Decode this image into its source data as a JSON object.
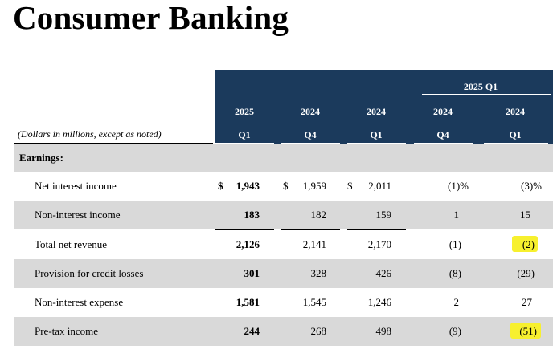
{
  "page": {
    "title": "Consumer Banking"
  },
  "table": {
    "note": "(Dollars in millions, except as noted)",
    "group_header": "2025 Q1",
    "columns": [
      {
        "year": "2025",
        "quarter": "Q1"
      },
      {
        "year": "2024",
        "quarter": "Q4"
      },
      {
        "year": "2024",
        "quarter": "Q1"
      },
      {
        "year": "2024",
        "quarter": "Q4"
      },
      {
        "year": "2024",
        "quarter": "Q1"
      }
    ],
    "section_label": "Earnings:",
    "rows": [
      {
        "label": "Net interest income",
        "c1": "1,943",
        "c2": "1,959",
        "c3": "2,011",
        "c4": "(1)%",
        "c5": "(3)%",
        "dollar_sign": "$"
      },
      {
        "label": "Non-interest income",
        "c1": "183",
        "c2": "182",
        "c3": "159",
        "c4": "1",
        "c5": "15"
      },
      {
        "label": "Total net revenue",
        "c1": "2,126",
        "c2": "2,141",
        "c3": "2,170",
        "c4": "(1)",
        "c5": "(2)"
      },
      {
        "label": "Provision for credit losses",
        "c1": "301",
        "c2": "328",
        "c3": "426",
        "c4": "(8)",
        "c5": "(29)"
      },
      {
        "label": "Non-interest expense",
        "c1": "1,581",
        "c2": "1,545",
        "c3": "1,246",
        "c4": "2",
        "c5": "27"
      },
      {
        "label": "Pre-tax income",
        "c1": "244",
        "c2": "268",
        "c3": "498",
        "c4": "(9)",
        "c5": "(51)"
      }
    ],
    "highlight_color": "#f7f02e",
    "header_color": "#1b3a5c",
    "shade_color": "#d9d9d9"
  }
}
